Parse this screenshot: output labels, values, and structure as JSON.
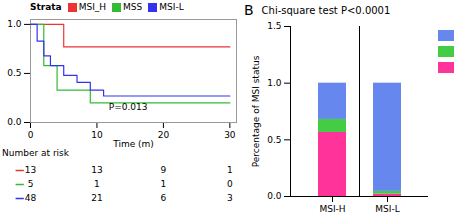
{
  "chart_data": [
    {
      "type": "step",
      "xlabel": "Time (m)",
      "legend_title": "Strata",
      "legend": "top",
      "annotations": [
        "P=0.013"
      ],
      "xlim": [
        0,
        31
      ],
      "ylim": [
        0,
        1.05
      ],
      "xticks": [
        0,
        10,
        20,
        30
      ],
      "yticks": [
        {
          "value": 0.0,
          "label": "0.0"
        },
        {
          "value": 0.5,
          "label": "0.5"
        },
        {
          "value": 1.0,
          "label": "1.0"
        }
      ],
      "series": [
        {
          "name": "MSI_H",
          "color": "#EE3333",
          "x": [
            0,
            5,
            5,
            30
          ],
          "values": [
            1.0,
            1.0,
            0.77,
            0.77
          ]
        },
        {
          "name": "MSS",
          "color": "#33BB33",
          "x": [
            0,
            2,
            2,
            4,
            4,
            9,
            9,
            30
          ],
          "values": [
            1.0,
            1.0,
            0.58,
            0.58,
            0.33,
            0.33,
            0.2,
            0.2
          ]
        },
        {
          "name": "MSI-L",
          "color": "#3333EE",
          "x": [
            0,
            1,
            1,
            2,
            2,
            3,
            3,
            5,
            5,
            7,
            7,
            9,
            9,
            11,
            11,
            30
          ],
          "values": [
            1.0,
            1.0,
            0.83,
            0.83,
            0.68,
            0.68,
            0.58,
            0.58,
            0.48,
            0.48,
            0.41,
            0.41,
            0.33,
            0.33,
            0.27,
            0.27
          ]
        }
      ]
    },
    {
      "type": "table",
      "title": "Number at risk",
      "xlim": [
        0,
        31
      ],
      "x": [
        0,
        10,
        20,
        30
      ],
      "series": [
        {
          "color": "#EE3333",
          "values": [
            13,
            13,
            9,
            1
          ]
        },
        {
          "color": "#33BB33",
          "values": [
            5,
            1,
            1,
            0
          ]
        },
        {
          "color": "#3333EE",
          "values": [
            48,
            21,
            6,
            3
          ]
        }
      ]
    },
    {
      "type": "bar",
      "title": "Chi-square test P<0.0001",
      "ylabel": "Percentage of MSI status",
      "annotations": [
        "B"
      ],
      "stacked": true,
      "legend": "right",
      "categories": [
        "MSI-H",
        "MSI-L"
      ],
      "ylim": [
        0,
        1.5
      ],
      "yticks": [
        {
          "value": 0.0,
          "label": "0.0"
        },
        {
          "value": 0.5,
          "label": "0.5"
        },
        {
          "value": 1.0,
          "label": "1.0"
        },
        {
          "value": 1.5,
          "label": "1.5"
        }
      ],
      "series": [
        {
          "color": "#FF3399",
          "values": [
            0.565,
            0.02
          ]
        },
        {
          "color": "#44CC44",
          "values": [
            0.115,
            0.025
          ]
        },
        {
          "color": "#6688EE",
          "values": [
            0.32,
            0.955
          ]
        }
      ]
    }
  ]
}
